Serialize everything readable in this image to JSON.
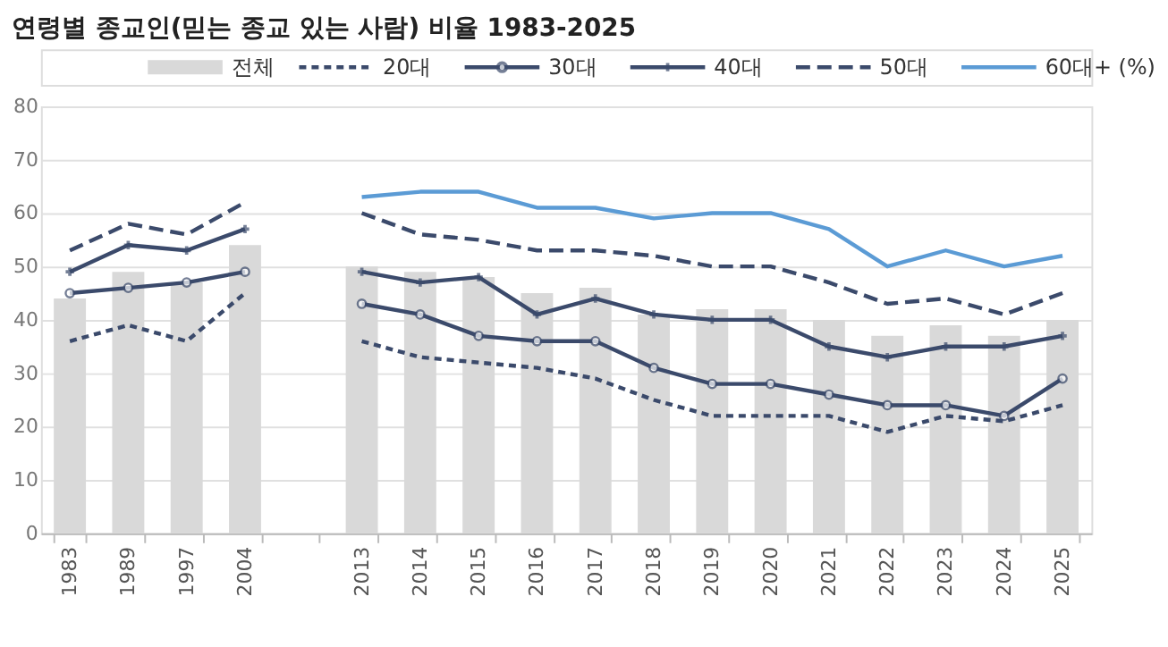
{
  "chart_data": {
    "type": "bar",
    "title": "연령별 종교인(믿는 종교 있는 사람) 비율 1983-2025",
    "categories": [
      "1983",
      "1989",
      "1997",
      "2004",
      null,
      "2013",
      "2014",
      "2015",
      "2016",
      "2017",
      "2018",
      "2019",
      "2020",
      "2021",
      "2022",
      "2023",
      "2024",
      "2025"
    ],
    "series": [
      {
        "name": "전체",
        "color": "#d9d9d9",
        "values": [
          44,
          49,
          47,
          54,
          null,
          50,
          49,
          48,
          45,
          46,
          41,
          42,
          42,
          40,
          37,
          39,
          37,
          40
        ]
      },
      {
        "name": "20대",
        "type": "line",
        "color": "#3b4a6b",
        "line_style": "dashed",
        "marker": "none",
        "values": [
          36,
          39,
          36,
          45,
          null,
          36,
          33,
          32,
          31,
          29,
          25,
          22,
          22,
          22,
          19,
          22,
          21,
          24
        ]
      },
      {
        "name": "30대",
        "type": "line",
        "color": "#3b4a6b",
        "line_style": "solid",
        "marker": "circle",
        "values": [
          45,
          46,
          47,
          49,
          null,
          43,
          41,
          37,
          36,
          36,
          31,
          28,
          28,
          26,
          24,
          24,
          22,
          29
        ]
      },
      {
        "name": "40대",
        "type": "line",
        "color": "#3b4a6b",
        "line_style": "solid",
        "marker": "cross",
        "values": [
          49,
          54,
          53,
          57,
          null,
          49,
          47,
          48,
          41,
          44,
          41,
          40,
          40,
          35,
          33,
          35,
          35,
          37
        ]
      },
      {
        "name": "50대",
        "type": "line",
        "color": "#3b4a6b",
        "line_style": "longdash",
        "marker": "none",
        "values": [
          53,
          58,
          56,
          62,
          null,
          60,
          56,
          55,
          53,
          53,
          52,
          50,
          50,
          47,
          43,
          44,
          41,
          45
        ]
      },
      {
        "name": "60대+ (%)",
        "type": "line",
        "color": "#5b9bd5",
        "line_style": "solid",
        "marker": "none",
        "values": [
          null,
          null,
          null,
          null,
          null,
          63,
          64,
          64,
          61,
          61,
          59,
          60,
          60,
          57,
          50,
          53,
          50,
          52
        ]
      }
    ],
    "ylim": [
      0,
      80
    ],
    "yticks": [
      0,
      10,
      20,
      30,
      40,
      50,
      60,
      70,
      80
    ],
    "grid": "y",
    "legend": "top"
  }
}
